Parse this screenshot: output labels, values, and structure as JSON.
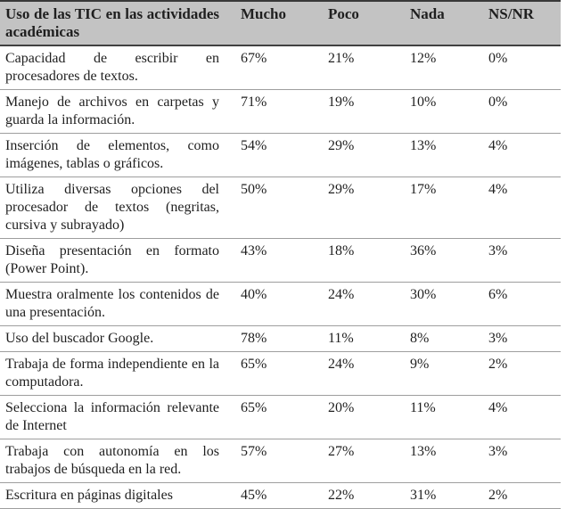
{
  "table": {
    "header": {
      "label": "Uso de las TIC en las actividades académicas",
      "columns": [
        "Mucho",
        "Poco",
        "Nada",
        "NS/NR"
      ]
    },
    "rows": [
      {
        "label": "Capacidad de escribir en procesadores de textos.",
        "values": [
          "67%",
          "21%",
          "12%",
          "0%"
        ]
      },
      {
        "label": "Manejo de archivos en carpetas y guarda la información.",
        "values": [
          "71%",
          "19%",
          "10%",
          "0%"
        ]
      },
      {
        "label": "Inserción de elementos, como imágenes, tablas o gráficos.",
        "values": [
          "54%",
          "29%",
          "13%",
          "4%"
        ]
      },
      {
        "label": "Utiliza diversas opciones del procesador de textos (negritas, cursiva y subrayado)",
        "values": [
          "50%",
          "29%",
          "17%",
          "4%"
        ]
      },
      {
        "label": "Diseña presentación en formato (Power Point).",
        "values": [
          "43%",
          "18%",
          "36%",
          "3%"
        ]
      },
      {
        "label": "Muestra oralmente los contenidos de una presentación.",
        "values": [
          "40%",
          "24%",
          "30%",
          "6%"
        ]
      },
      {
        "label": "Uso del buscador Google.",
        "values": [
          "78%",
          "11%",
          "8%",
          "3%"
        ]
      },
      {
        "label": "Trabaja de forma independiente en la computadora.",
        "values": [
          "65%",
          "24%",
          "9%",
          "2%"
        ]
      },
      {
        "label": "Selecciona la información relevante de Internet",
        "values": [
          "65%",
          "20%",
          "11%",
          "4%"
        ]
      },
      {
        "label": "Trabaja con autonomía en los trabajos de búsqueda en la red.",
        "values": [
          "57%",
          "27%",
          "13%",
          "3%"
        ]
      },
      {
        "label": "Escritura en páginas digitales",
        "values": [
          "45%",
          "22%",
          "31%",
          "2%"
        ]
      }
    ],
    "colors": {
      "header_bg": "#c3c3c3",
      "border_dark": "#414141",
      "border_light": "#9e9e9e",
      "text": "#1f1f1f"
    }
  },
  "chart_data": {
    "type": "table",
    "title": "Uso de las TIC en las actividades académicas",
    "columns": [
      "Uso de las TIC en las actividades académicas",
      "Mucho",
      "Poco",
      "Nada",
      "NS/NR"
    ],
    "rows": [
      [
        "Capacidad de escribir en procesadores de textos.",
        67,
        21,
        12,
        0
      ],
      [
        "Manejo de archivos en carpetas y guarda la información.",
        71,
        19,
        10,
        0
      ],
      [
        "Inserción de elementos, como imágenes, tablas o gráficos.",
        54,
        29,
        13,
        4
      ],
      [
        "Utiliza diversas opciones del procesador de textos (negritas, cursiva y subrayado)",
        50,
        29,
        17,
        4
      ],
      [
        "Diseña presentación en formato (Power Point).",
        43,
        18,
        36,
        3
      ],
      [
        "Muestra oralmente los contenidos de una presentación.",
        40,
        24,
        30,
        6
      ],
      [
        "Uso del buscador Google.",
        78,
        11,
        8,
        3
      ],
      [
        "Trabaja de forma independiente en la computadora.",
        65,
        24,
        9,
        2
      ],
      [
        "Selecciona la información relevante de Internet",
        65,
        20,
        11,
        4
      ],
      [
        "Trabaja con autonomía en los trabajos de búsqueda en la red.",
        57,
        27,
        13,
        3
      ],
      [
        "Escritura en páginas digitales",
        45,
        22,
        31,
        2
      ]
    ],
    "units": "percent"
  }
}
